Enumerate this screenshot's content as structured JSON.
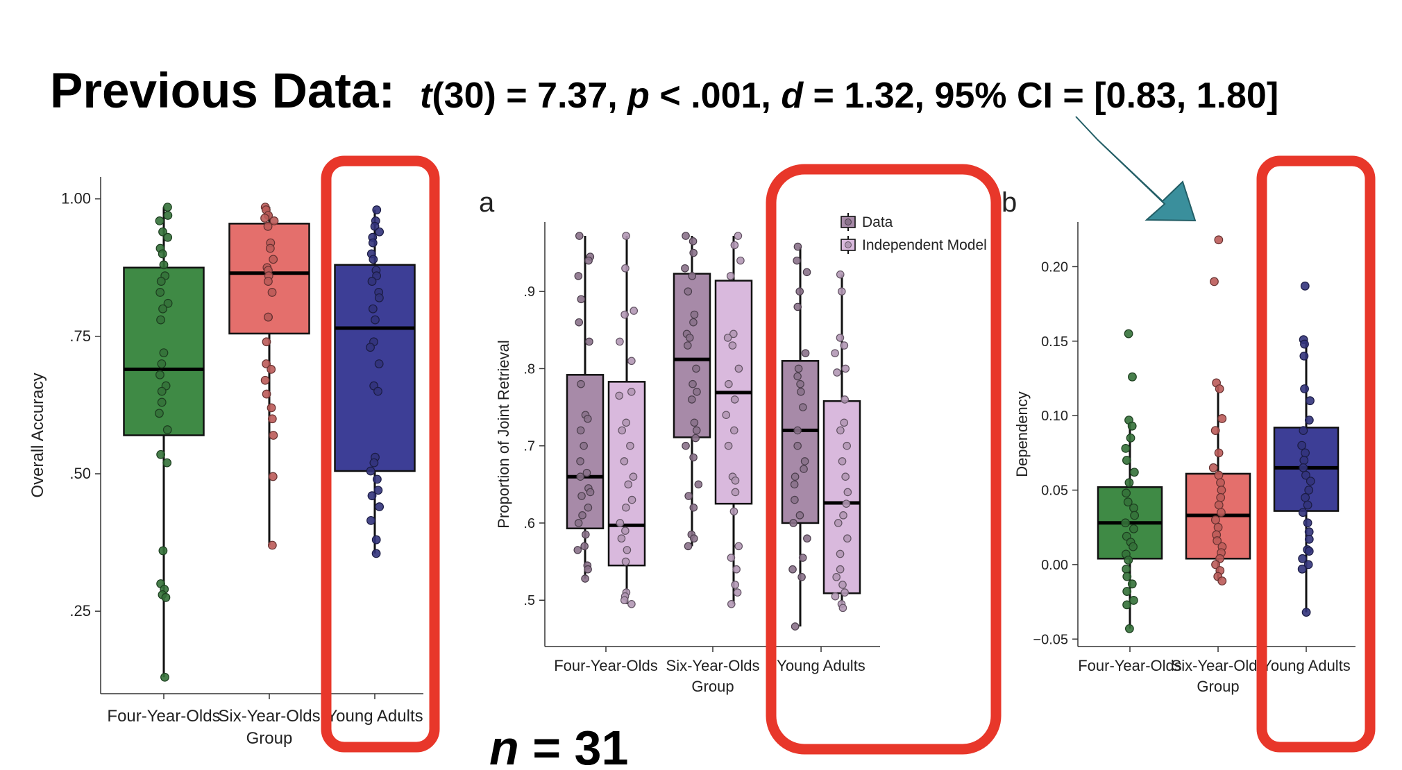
{
  "headline": {
    "label": "Previous Data:",
    "stat_parts": [
      "t",
      "(30) = 7.37, ",
      "p",
      " < .001, ",
      "d",
      " = 1.32, 95% CI = [0.83, 1.80]"
    ]
  },
  "sample_note": {
    "n_letter": "n",
    "n_value": " = 31"
  },
  "colors": {
    "highlight": "#e8372a",
    "arrow": "#3a8f9c",
    "four": "#3f8a45",
    "six": "#e46f6c",
    "young": "#3d3e96",
    "data_box": "#a78aa8",
    "model_box": "#d9b9dd"
  },
  "panel_labels": {
    "a": "a",
    "b": "b"
  },
  "chart_data": [
    {
      "id": "overall-accuracy",
      "type": "boxplot",
      "ylabel": "Overall Accuracy",
      "xlabel": "Group",
      "yticks": [
        {
          "value": 1.0,
          "label": "1.00"
        },
        {
          "value": 0.75,
          "label": ".75"
        },
        {
          "value": 0.5,
          "label": ".50"
        },
        {
          "value": 0.25,
          "label": ".25"
        }
      ],
      "ylim": [
        0.1,
        1.04
      ],
      "categories": [
        "Four-Year-Olds",
        "Six-Year-Olds",
        "Young Adults"
      ],
      "boxes": [
        {
          "min": 0.13,
          "q1": 0.57,
          "median": 0.69,
          "q3": 0.875,
          "max": 0.985,
          "color_key": "four",
          "points": [
            0.985,
            0.97,
            0.96,
            0.94,
            0.93,
            0.91,
            0.9,
            0.88,
            0.86,
            0.85,
            0.83,
            0.81,
            0.8,
            0.78,
            0.72,
            0.7,
            0.68,
            0.66,
            0.65,
            0.63,
            0.61,
            0.58,
            0.535,
            0.52,
            0.36,
            0.3,
            0.29,
            0.28,
            0.275,
            0.13
          ]
        },
        {
          "min": 0.37,
          "q1": 0.755,
          "median": 0.865,
          "q3": 0.955,
          "max": 0.985,
          "color_key": "six",
          "points": [
            0.985,
            0.98,
            0.97,
            0.965,
            0.96,
            0.95,
            0.92,
            0.91,
            0.89,
            0.875,
            0.87,
            0.86,
            0.85,
            0.83,
            0.785,
            0.785,
            0.74,
            0.7,
            0.69,
            0.67,
            0.645,
            0.62,
            0.6,
            0.57,
            0.495,
            0.37
          ]
        },
        {
          "min": 0.355,
          "q1": 0.505,
          "median": 0.765,
          "q3": 0.88,
          "max": 0.98,
          "color_key": "young",
          "points": [
            0.98,
            0.96,
            0.95,
            0.94,
            0.93,
            0.92,
            0.9,
            0.89,
            0.87,
            0.86,
            0.85,
            0.83,
            0.82,
            0.8,
            0.78,
            0.74,
            0.73,
            0.7,
            0.66,
            0.65,
            0.53,
            0.52,
            0.505,
            0.49,
            0.47,
            0.46,
            0.44,
            0.415,
            0.38,
            0.355
          ]
        }
      ]
    },
    {
      "id": "joint-retrieval",
      "type": "boxplot",
      "ylabel": "Proportion of Joint Retrieval",
      "xlabel": "Group",
      "yticks": [
        {
          "value": 0.9,
          "label": ".9"
        },
        {
          "value": 0.8,
          "label": ".8"
        },
        {
          "value": 0.7,
          "label": ".7"
        },
        {
          "value": 0.6,
          "label": ".6"
        },
        {
          "value": 0.5,
          "label": ".5"
        }
      ],
      "ylim": [
        0.44,
        0.99
      ],
      "categories": [
        "Four-Year-Olds",
        "Six-Year-Olds",
        "Young Adults"
      ],
      "legend": [
        {
          "label": "Data",
          "color_key": "data_box"
        },
        {
          "label": "Independent Model",
          "color_key": "model_box"
        }
      ],
      "boxes": [
        {
          "group": 0,
          "series": 0,
          "min": 0.528,
          "q1": 0.593,
          "median": 0.66,
          "q3": 0.792,
          "max": 0.972,
          "points": [
            0.972,
            0.945,
            0.94,
            0.92,
            0.89,
            0.86,
            0.835,
            0.78,
            0.74,
            0.735,
            0.72,
            0.7,
            0.68,
            0.665,
            0.66,
            0.645,
            0.64,
            0.635,
            0.62,
            0.61,
            0.6,
            0.585,
            0.57,
            0.565,
            0.545,
            0.54,
            0.528
          ]
        },
        {
          "group": 0,
          "series": 1,
          "min": 0.495,
          "q1": 0.545,
          "median": 0.597,
          "q3": 0.783,
          "max": 0.972,
          "points": [
            0.972,
            0.93,
            0.875,
            0.87,
            0.835,
            0.81,
            0.77,
            0.765,
            0.73,
            0.72,
            0.7,
            0.68,
            0.66,
            0.65,
            0.63,
            0.62,
            0.6,
            0.59,
            0.58,
            0.565,
            0.55,
            0.51,
            0.505,
            0.5,
            0.495
          ]
        },
        {
          "group": 1,
          "series": 0,
          "min": 0.57,
          "q1": 0.711,
          "median": 0.812,
          "q3": 0.923,
          "max": 0.972,
          "points": [
            0.972,
            0.965,
            0.95,
            0.93,
            0.92,
            0.9,
            0.87,
            0.86,
            0.845,
            0.84,
            0.83,
            0.8,
            0.78,
            0.77,
            0.76,
            0.73,
            0.72,
            0.71,
            0.7,
            0.685,
            0.65,
            0.635,
            0.62,
            0.585,
            0.58,
            0.57
          ]
        },
        {
          "group": 1,
          "series": 1,
          "min": 0.495,
          "q1": 0.625,
          "median": 0.769,
          "q3": 0.914,
          "max": 0.972,
          "points": [
            0.972,
            0.96,
            0.94,
            0.92,
            0.845,
            0.84,
            0.83,
            0.8,
            0.78,
            0.76,
            0.74,
            0.72,
            0.7,
            0.66,
            0.655,
            0.64,
            0.615,
            0.57,
            0.555,
            0.54,
            0.52,
            0.51,
            0.495
          ]
        },
        {
          "group": 2,
          "series": 0,
          "min": 0.466,
          "q1": 0.6,
          "median": 0.72,
          "q3": 0.81,
          "max": 0.958,
          "points": [
            0.958,
            0.94,
            0.925,
            0.9,
            0.88,
            0.82,
            0.8,
            0.79,
            0.78,
            0.77,
            0.75,
            0.72,
            0.7,
            0.68,
            0.67,
            0.66,
            0.65,
            0.63,
            0.61,
            0.6,
            0.58,
            0.555,
            0.54,
            0.53,
            0.466
          ]
        },
        {
          "group": 2,
          "series": 1,
          "min": 0.49,
          "q1": 0.509,
          "median": 0.626,
          "q3": 0.758,
          "max": 0.922,
          "points": [
            0.922,
            0.9,
            0.84,
            0.83,
            0.82,
            0.8,
            0.795,
            0.76,
            0.73,
            0.72,
            0.7,
            0.68,
            0.66,
            0.64,
            0.625,
            0.61,
            0.6,
            0.58,
            0.56,
            0.54,
            0.53,
            0.52,
            0.51,
            0.505,
            0.495,
            0.49
          ]
        }
      ]
    },
    {
      "id": "dependency",
      "type": "boxplot",
      "ylabel": "Dependency",
      "xlabel": "Group",
      "yticks": [
        {
          "value": 0.2,
          "label": "0.20"
        },
        {
          "value": 0.15,
          "label": "0.15"
        },
        {
          "value": 0.1,
          "label": "0.10"
        },
        {
          "value": 0.05,
          "label": "0.05"
        },
        {
          "value": 0.0,
          "label": "0.00"
        },
        {
          "value": -0.05,
          "label": "−0.05"
        }
      ],
      "ylim": [
        -0.055,
        0.23
      ],
      "categories": [
        "Four-Year-Olds",
        "Six-Year-Olds",
        "Young Adults"
      ],
      "boxes": [
        {
          "min": -0.043,
          "q1": 0.004,
          "median": 0.028,
          "q3": 0.052,
          "max": 0.095,
          "color_key": "four",
          "points": [
            0.155,
            0.126,
            0.097,
            0.093,
            0.085,
            0.078,
            0.07,
            0.062,
            0.055,
            0.048,
            0.042,
            0.038,
            0.033,
            0.028,
            0.024,
            0.019,
            0.015,
            0.012,
            0.007,
            0.003,
            -0.003,
            -0.008,
            -0.013,
            -0.018,
            -0.024,
            -0.027,
            -0.043
          ]
        },
        {
          "min": -0.011,
          "q1": 0.004,
          "median": 0.033,
          "q3": 0.061,
          "max": 0.12,
          "color_key": "six",
          "points": [
            0.218,
            0.19,
            0.122,
            0.118,
            0.098,
            0.09,
            0.075,
            0.065,
            0.06,
            0.055,
            0.05,
            0.045,
            0.04,
            0.035,
            0.03,
            0.025,
            0.02,
            0.016,
            0.012,
            0.008,
            0.004,
            0.0,
            -0.004,
            -0.008,
            -0.011
          ]
        },
        {
          "min": -0.032,
          "q1": 0.036,
          "median": 0.065,
          "q3": 0.092,
          "max": 0.151,
          "color_key": "young",
          "points": [
            0.187,
            0.151,
            0.148,
            0.14,
            0.118,
            0.11,
            0.097,
            0.09,
            0.08,
            0.075,
            0.07,
            0.065,
            0.06,
            0.056,
            0.05,
            0.045,
            0.04,
            0.035,
            0.028,
            0.022,
            0.017,
            0.01,
            0.009,
            0.004,
            0.0,
            -0.003,
            -0.032
          ]
        }
      ]
    }
  ]
}
